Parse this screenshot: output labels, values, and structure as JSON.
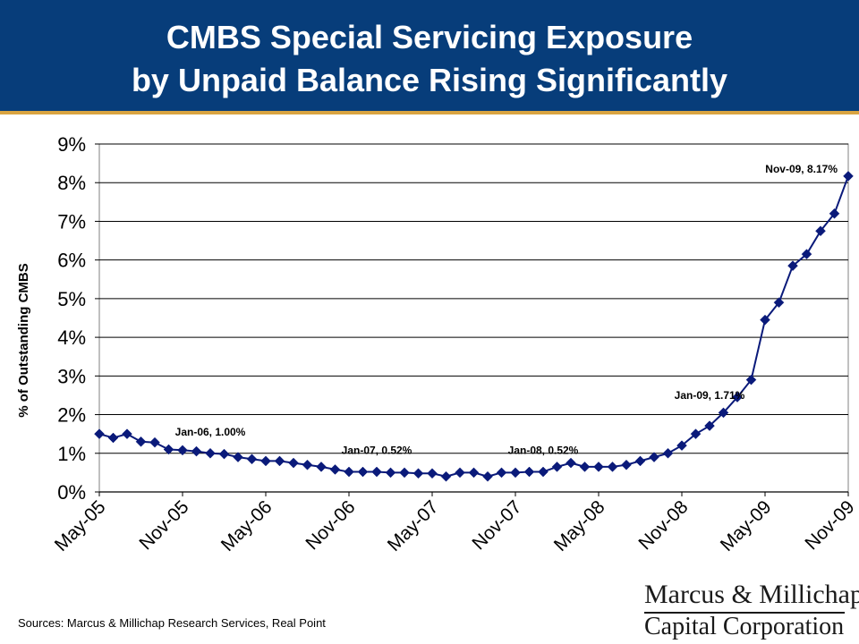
{
  "header": {
    "title_line1": "CMBS Special Servicing Exposure",
    "title_line2": "by Unpaid Balance Rising Significantly"
  },
  "source_note": "Sources: Marcus & Millichap Research Services, Real Point",
  "logo": {
    "line1": "Marcus & Millichap",
    "line2": "Capital Corporation"
  },
  "colors": {
    "header_bg": "#073d7a",
    "header_rule": "#d9a441",
    "series": "#0a1a7a"
  },
  "chart_data": {
    "type": "line",
    "title": "",
    "xlabel": "",
    "ylabel": "% of Outstanding CMBS",
    "ylim": [
      0,
      9
    ],
    "yticks": [
      "0%",
      "1%",
      "2%",
      "3%",
      "4%",
      "5%",
      "6%",
      "7%",
      "8%",
      "9%"
    ],
    "xtick_labels": [
      "May-05",
      "Nov-05",
      "May-06",
      "Nov-06",
      "May-07",
      "Nov-07",
      "May-08",
      "Nov-08",
      "May-09",
      "Nov-09"
    ],
    "grid": "horizontal",
    "series": [
      {
        "x": [
          "May-05",
          "Jun-05",
          "Jul-05",
          "Aug-05",
          "Sep-05",
          "Oct-05",
          "Nov-05",
          "Dec-05",
          "Jan-06",
          "Feb-06",
          "Mar-06",
          "Apr-06",
          "May-06",
          "Jun-06",
          "Jul-06",
          "Aug-06",
          "Sep-06",
          "Oct-06",
          "Nov-06",
          "Dec-06",
          "Jan-07",
          "Feb-07",
          "Mar-07",
          "Apr-07",
          "May-07",
          "Jun-07",
          "Jul-07",
          "Aug-07",
          "Sep-07",
          "Oct-07",
          "Nov-07",
          "Dec-07",
          "Jan-08",
          "Feb-08",
          "Mar-08",
          "Apr-08",
          "May-08",
          "Jun-08",
          "Jul-08",
          "Aug-08",
          "Sep-08",
          "Oct-08",
          "Nov-08",
          "Dec-08",
          "Jan-09",
          "Feb-09",
          "Mar-09",
          "Apr-09",
          "May-09",
          "Jun-09",
          "Jul-09",
          "Aug-09",
          "Sep-09",
          "Oct-09",
          "Nov-09"
        ],
        "values": [
          1.5,
          1.4,
          1.5,
          1.3,
          1.28,
          1.1,
          1.08,
          1.05,
          1.0,
          0.98,
          0.9,
          0.85,
          0.8,
          0.8,
          0.75,
          0.7,
          0.65,
          0.58,
          0.52,
          0.52,
          0.52,
          0.5,
          0.5,
          0.48,
          0.48,
          0.4,
          0.5,
          0.5,
          0.4,
          0.5,
          0.5,
          0.52,
          0.52,
          0.65,
          0.75,
          0.65,
          0.65,
          0.65,
          0.7,
          0.8,
          0.9,
          1.0,
          1.2,
          1.5,
          1.71,
          2.05,
          2.45,
          2.9,
          4.45,
          4.9,
          5.85,
          6.15,
          6.75,
          7.2,
          8.17
        ]
      }
    ],
    "annotations": [
      {
        "label": "Jan-06, 1.00%",
        "x": "Jan-06",
        "y": 1.0
      },
      {
        "label": "Jan-07, 0.52%",
        "x": "Jan-07",
        "y": 0.52
      },
      {
        "label": "Jan-08, 0.52%",
        "x": "Jan-08",
        "y": 0.52
      },
      {
        "label": "Jan-09, 1.71%",
        "x": "Jan-09",
        "y": 1.71
      },
      {
        "label": "Nov-09, 8.17%",
        "x": "Nov-09",
        "y": 8.17
      }
    ]
  }
}
